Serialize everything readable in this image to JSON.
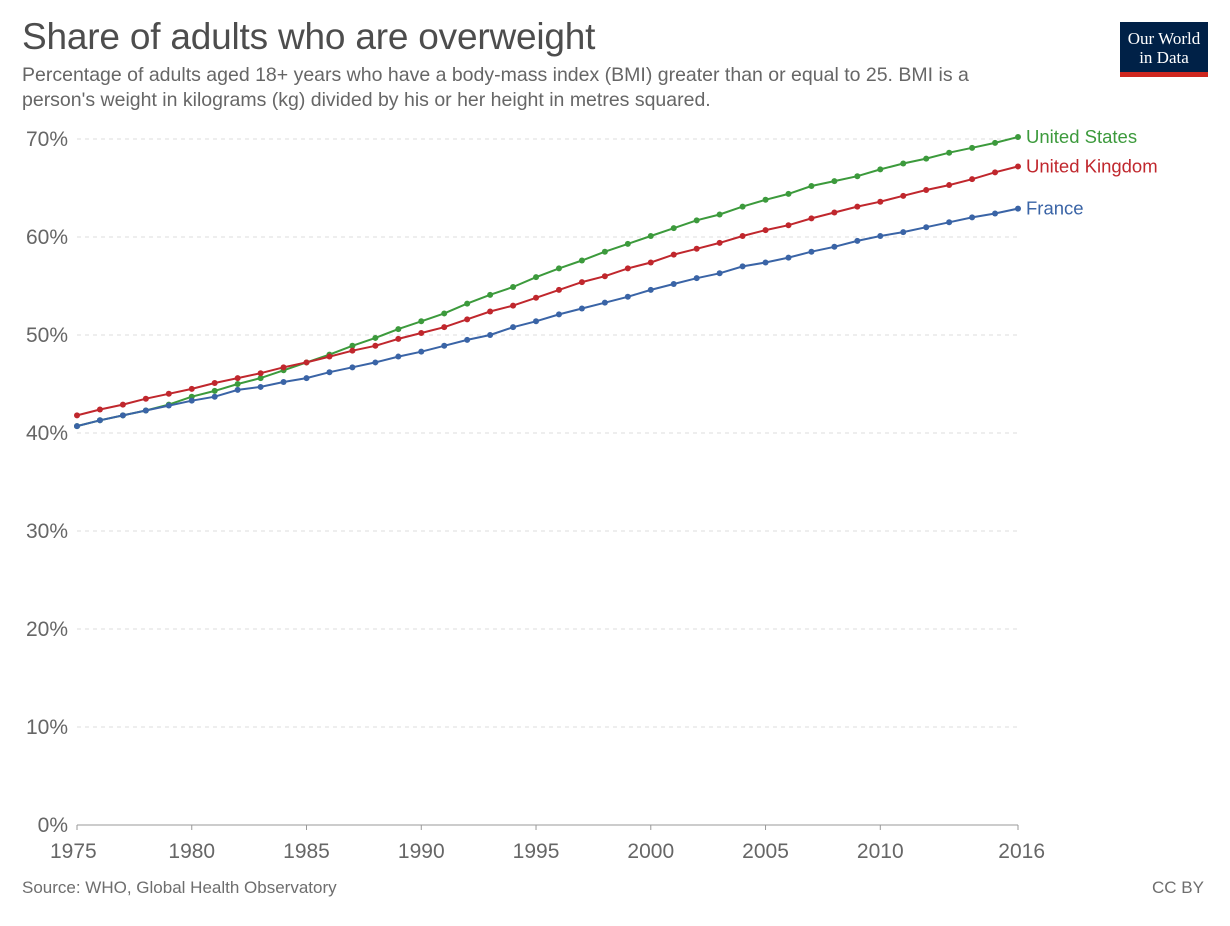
{
  "header": {
    "title": "Share of adults who are overweight",
    "subtitle": "Percentage of adults aged 18+ years who have a body-mass index (BMI) greater than or equal to 25. BMI is a person's weight in kilograms (kg) divided by his or her height in metres squared."
  },
  "logo": {
    "line1": "Our World",
    "line2": "in Data"
  },
  "footer": {
    "source": "Source: WHO, Global Health Observatory",
    "license": "CC BY"
  },
  "colors": {
    "united_states": "#3c9a3c",
    "united_kingdom": "#c0272d",
    "france": "#3a64a6",
    "logo_bg": "#002147",
    "logo_accent": "#ce261e"
  },
  "chart_data": {
    "type": "line",
    "xlim": [
      1975,
      2016
    ],
    "ylim": [
      0,
      70
    ],
    "x_ticks": [
      1975,
      1980,
      1985,
      1990,
      1995,
      2000,
      2005,
      2010,
      2016
    ],
    "y_ticks": [
      0,
      10,
      20,
      30,
      40,
      50,
      60,
      70
    ],
    "y_tick_suffix": "%",
    "grid": "horizontal dashed",
    "legend": "right, labels at line ends",
    "x": [
      1975,
      1976,
      1977,
      1978,
      1979,
      1980,
      1981,
      1982,
      1983,
      1984,
      1985,
      1986,
      1987,
      1988,
      1989,
      1990,
      1991,
      1992,
      1993,
      1994,
      1995,
      1996,
      1997,
      1998,
      1999,
      2000,
      2001,
      2002,
      2003,
      2004,
      2005,
      2006,
      2007,
      2008,
      2009,
      2010,
      2011,
      2012,
      2013,
      2014,
      2015,
      2016
    ],
    "series": [
      {
        "name": "United States",
        "color": "#3c9a3c",
        "values": [
          40.7,
          41.3,
          41.8,
          42.3,
          42.9,
          43.7,
          44.3,
          45.0,
          45.6,
          46.4,
          47.2,
          48.0,
          48.9,
          49.7,
          50.6,
          51.4,
          52.2,
          53.2,
          54.1,
          54.9,
          55.9,
          56.8,
          57.6,
          58.5,
          59.3,
          60.1,
          60.9,
          61.7,
          62.3,
          63.1,
          63.8,
          64.4,
          65.2,
          65.7,
          66.2,
          66.9,
          67.5,
          68.0,
          68.6,
          69.1,
          69.6,
          70.2
        ]
      },
      {
        "name": "United Kingdom",
        "color": "#c0272d",
        "values": [
          41.8,
          42.4,
          42.9,
          43.5,
          44.0,
          44.5,
          45.1,
          45.6,
          46.1,
          46.7,
          47.2,
          47.8,
          48.4,
          48.9,
          49.6,
          50.2,
          50.8,
          51.6,
          52.4,
          53.0,
          53.8,
          54.6,
          55.4,
          56.0,
          56.8,
          57.4,
          58.2,
          58.8,
          59.4,
          60.1,
          60.7,
          61.2,
          61.9,
          62.5,
          63.1,
          63.6,
          64.2,
          64.8,
          65.3,
          65.9,
          66.6,
          67.2
        ]
      },
      {
        "name": "France",
        "color": "#3a64a6",
        "values": [
          40.7,
          41.3,
          41.8,
          42.3,
          42.8,
          43.3,
          43.7,
          44.4,
          44.7,
          45.2,
          45.6,
          46.2,
          46.7,
          47.2,
          47.8,
          48.3,
          48.9,
          49.5,
          50.0,
          50.8,
          51.4,
          52.1,
          52.7,
          53.3,
          53.9,
          54.6,
          55.2,
          55.8,
          56.3,
          57.0,
          57.4,
          57.9,
          58.5,
          59.0,
          59.6,
          60.1,
          60.5,
          61.0,
          61.5,
          62.0,
          62.4,
          62.9
        ]
      }
    ]
  }
}
